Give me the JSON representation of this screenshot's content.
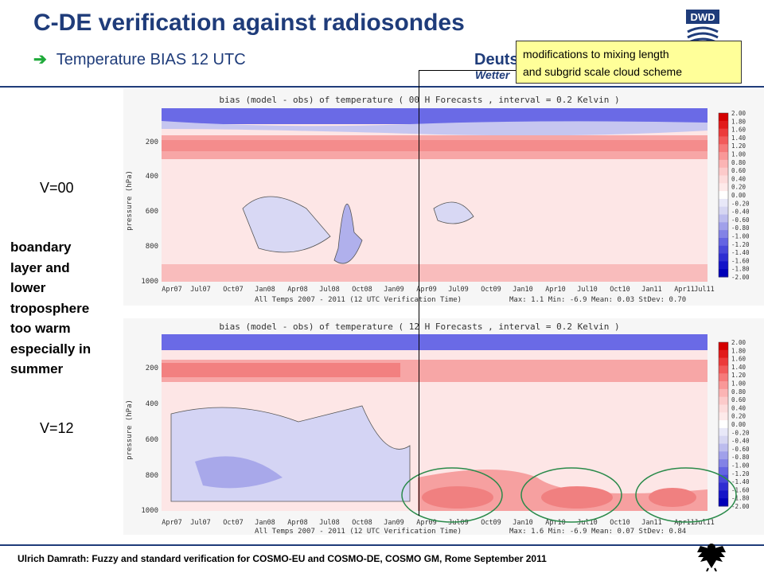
{
  "header": {
    "title": "C-DE verification against radiosondes",
    "subtitle": "Temperature BIAS 12 UTC",
    "logo_dwd": "DWD",
    "logo_text_1": "Deuts",
    "logo_text_2": "Wetter"
  },
  "note": {
    "line1": "modifications to mixing length",
    "line2": "and subgrid scale cloud scheme"
  },
  "labels": {
    "v00": "V=00",
    "v12": "V=12",
    "side_text": [
      "boandary",
      "layer and",
      "lower",
      "troposphere",
      "too warm",
      "especially in",
      "summer"
    ]
  },
  "plots": [
    {
      "title": "bias (model - obs) of temperature  ( 00 H Forecasts  , interval = 0.2 Kelvin )",
      "caption_left": "All Temps 2007 - 2011  (12 UTC Verification Time)",
      "stats": "Max: 1.1  Min: -6.9  Mean: 0.03  StDev: 0.70"
    },
    {
      "title": "bias (model - obs) of temperature  ( 12 H Forecasts  , interval = 0.2 Kelvin )",
      "caption_left": "All Temps 2007 - 2011  (12 UTC Verification Time)",
      "stats": "Max: 1.6  Min: -6.9  Mean: 0.07  StDev: 0.84"
    }
  ],
  "axis": {
    "ylabel": "pressure (hPa)",
    "yticks": [
      "200",
      "400",
      "600",
      "800",
      "1000"
    ],
    "xticks": [
      "Apr07",
      "Jul07",
      "Oct07",
      "Jan08",
      "Apr08",
      "Jul08",
      "Oct08",
      "Jan09",
      "Apr09",
      "Jul09",
      "Oct09",
      "Jan10",
      "Apr10",
      "Jul10",
      "Oct10",
      "Jan11",
      "Apr11",
      "Jul11"
    ]
  },
  "colorbar": {
    "labels": [
      "2.00",
      "1.80",
      "1.60",
      "1.40",
      "1.20",
      "1.00",
      "0.80",
      "0.60",
      "0.40",
      "0.20",
      "0.00",
      "-0.20",
      "-0.40",
      "-0.60",
      "-0.80",
      "-1.00",
      "-1.20",
      "-1.40",
      "-1.60",
      "-1.80",
      "-2.00"
    ],
    "colors": [
      "#d40000",
      "#e21a1a",
      "#ec3a3a",
      "#f25a5a",
      "#f67a7a",
      "#f99898",
      "#fbb4b4",
      "#fccaca",
      "#fddcdc",
      "#feeaea",
      "#ffffff",
      "#e8e8f8",
      "#d6d6f2",
      "#bcbcee",
      "#a0a0ea",
      "#8282e6",
      "#6464e2",
      "#4848da",
      "#2e2ed2",
      "#1414c8",
      "#0000b8"
    ]
  },
  "footer": {
    "text": "Ulrich Damrath: Fuzzy and standard verification for COSMO-EU and COSMO-DE, COSMO GM, Rome September 2011"
  }
}
